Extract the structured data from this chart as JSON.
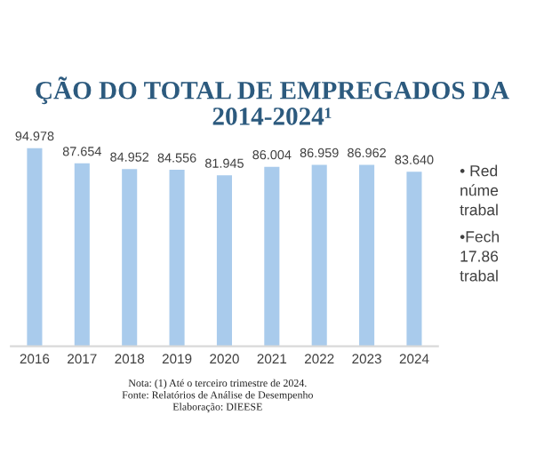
{
  "chart_data": {
    "type": "bar",
    "title": "ÇÃO DO TOTAL DE EMPREGADOS DA",
    "subtitle": "2014-2024¹",
    "categories": [
      "2016",
      "2017",
      "2018",
      "2019",
      "2020",
      "2021",
      "2022",
      "2023",
      "2024"
    ],
    "values": [
      94.978,
      87.654,
      84.952,
      84.556,
      81.945,
      86.004,
      86.959,
      86.962,
      83.64
    ],
    "value_labels": [
      "94.978",
      "87.654",
      "84.952",
      "84.556",
      "81.945",
      "86.004",
      "86.959",
      "86.962",
      "83.640"
    ],
    "color": "#a9cbec",
    "annotations": [
      "Nota: (1) Até o terceiro trimestre de 2024.\nFonte: Relatórios de Análise de Desempenho\nElaboração: DIEESE",
      "• Red\nnúme\ntrabal",
      "•Fech\n17.86\ntrabal"
    ]
  }
}
